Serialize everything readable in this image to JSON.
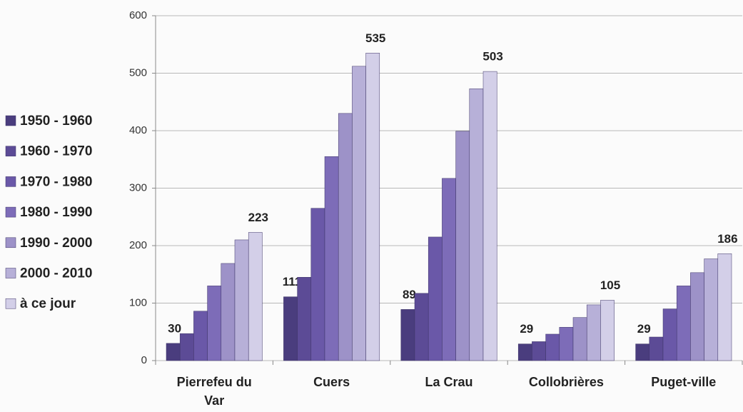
{
  "chart_data": {
    "type": "bar",
    "categories": [
      "Pierrefeu du Var",
      "Cuers",
      "La Crau",
      "Collobrières",
      "Puget-ville"
    ],
    "series": [
      {
        "name": "1950 - 1960",
        "color": "#4a3d7e",
        "values": [
          30,
          111,
          89,
          29,
          29
        ],
        "data_labels": true
      },
      {
        "name": "1960 - 1970",
        "color": "#5c4b96",
        "values": [
          47,
          145,
          117,
          33,
          41
        ]
      },
      {
        "name": "1970 - 1980",
        "color": "#6a58a8",
        "values": [
          86,
          265,
          215,
          46,
          90
        ]
      },
      {
        "name": "1980 - 1990",
        "color": "#7d6cb8",
        "values": [
          130,
          355,
          317,
          58,
          130
        ]
      },
      {
        "name": "1990 - 2000",
        "color": "#9d92c8",
        "values": [
          169,
          430,
          399,
          75,
          153
        ]
      },
      {
        "name": "2000 - 2010",
        "color": "#b7b0d8",
        "values": [
          210,
          512,
          473,
          97,
          177
        ]
      },
      {
        "name": "à ce jour",
        "color": "#d3cfe8",
        "values": [
          223,
          535,
          503,
          105,
          186
        ],
        "data_labels": true
      }
    ],
    "ylim": [
      0,
      600
    ],
    "yticks": [
      0,
      100,
      200,
      300,
      400,
      500,
      600
    ],
    "grid": true,
    "legend": "left"
  }
}
